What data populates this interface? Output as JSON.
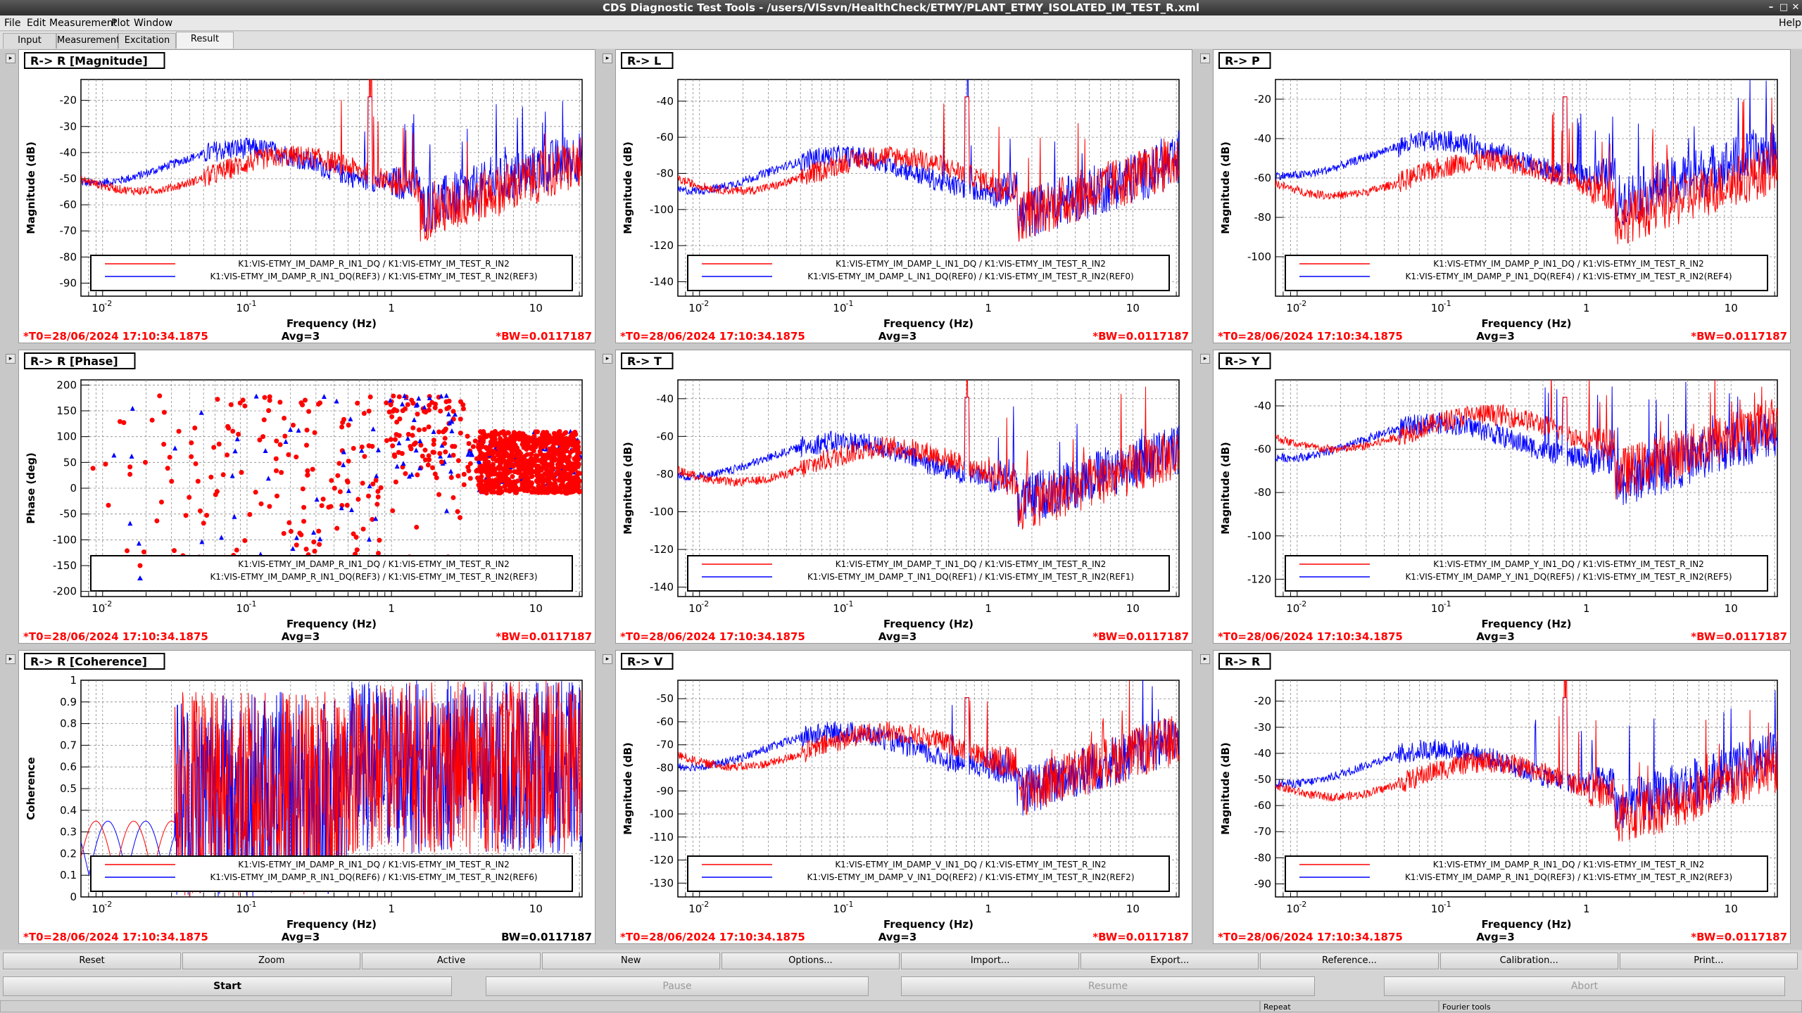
{
  "window": {
    "title": "CDS Diagnostic Test Tools - /users/VISsvn/HealthCheck/ETMY/PLANT_ETMY_ISOLATED_IM_TEST_R.xml"
  },
  "menu": [
    "File",
    "Edit",
    "Measurement",
    "Plot",
    "Window",
    "Help"
  ],
  "tabs": [
    {
      "label": "Input",
      "active": false
    },
    {
      "label": "Measurement",
      "active": false
    },
    {
      "label": "Excitation",
      "active": false
    },
    {
      "label": "Result",
      "active": true
    }
  ],
  "common": {
    "t0": "*T0=28/06/2024 17:10:34.1875",
    "avg": "Avg=3",
    "bw": "*BW=0.0117187",
    "bw_plain": "BW=0.0117187",
    "xlabel": "Frequency (Hz)",
    "xticks": [
      "10",
      "-2",
      "10",
      "-1",
      "1",
      "10"
    ]
  },
  "panels": [
    {
      "title": "R-> R [Magnitude]",
      "ylabel": "Magnitude (dB)",
      "yticks": [
        "-20",
        "-30",
        "-40",
        "-50",
        "-60",
        "-70",
        "-80",
        "-90"
      ],
      "ymin": -95,
      "ymax": -12,
      "legend": [
        "K1:VIS-ETMY_IM_DAMP_R_IN1_DQ / K1:VIS-ETMY_IM_TEST_R_IN2",
        "K1:VIS-ETMY_IM_DAMP_R_IN1_DQ(REF3) / K1:VIS-ETMY_IM_TEST_R_IN2(REF3)"
      ],
      "bw": "*BW=0.0117187",
      "kind": "mag",
      "redBase": -48,
      "blueBase": -45
    },
    {
      "title": "R-> L",
      "ylabel": "Magnitude (dB)",
      "yticks": [
        "-40",
        "-60",
        "-80",
        "-100",
        "-120",
        "-140"
      ],
      "ymin": -148,
      "ymax": -28,
      "legend": [
        "K1:VIS-ETMY_IM_DAMP_L_IN1_DQ / K1:VIS-ETMY_IM_TEST_R_IN2",
        "K1:VIS-ETMY_IM_DAMP_L_IN1_DQ(REF0) / K1:VIS-ETMY_IM_TEST_R_IN2(REF0)"
      ],
      "bw": "*BW=0.0117187",
      "kind": "mag",
      "redBase": -80,
      "blueBase": -80
    },
    {
      "title": "R-> P",
      "ylabel": "Magnitude (dB)",
      "yticks": [
        "-20",
        "-40",
        "-60",
        "-80",
        "-100"
      ],
      "ymin": -120,
      "ymax": -10,
      "legend": [
        "K1:VIS-ETMY_IM_DAMP_P_IN1_DQ / K1:VIS-ETMY_IM_TEST_R_IN2",
        "K1:VIS-ETMY_IM_DAMP_P_IN1_DQ(REF4) / K1:VIS-ETMY_IM_TEST_R_IN2(REF4)"
      ],
      "bw": "*BW=0.0117187",
      "kind": "mag",
      "redBase": -60,
      "blueBase": -50
    },
    {
      "title": "R-> R [Phase]",
      "ylabel": "Phase (deg)",
      "yticks": [
        "200",
        "150",
        "100",
        "50",
        "0",
        "-50",
        "-100",
        "-150",
        "-200"
      ],
      "ymin": -210,
      "ymax": 210,
      "legend": [
        "K1:VIS-ETMY_IM_DAMP_R_IN1_DQ / K1:VIS-ETMY_IM_TEST_R_IN2",
        "K1:VIS-ETMY_IM_DAMP_R_IN1_DQ(REF3) / K1:VIS-ETMY_IM_TEST_R_IN2(REF3)"
      ],
      "bw": "*BW=0.0117187",
      "kind": "phase"
    },
    {
      "title": "R-> T",
      "ylabel": "Magnitude (dB)",
      "yticks": [
        "-40",
        "-60",
        "-80",
        "-100",
        "-120",
        "-140"
      ],
      "ymin": -145,
      "ymax": -30,
      "legend": [
        "K1:VIS-ETMY_IM_DAMP_T_IN1_DQ / K1:VIS-ETMY_IM_TEST_R_IN2",
        "K1:VIS-ETMY_IM_DAMP_T_IN1_DQ(REF1) / K1:VIS-ETMY_IM_TEST_R_IN2(REF1)"
      ],
      "bw": "*BW=0.0117187",
      "kind": "mag",
      "redBase": -75,
      "blueBase": -72
    },
    {
      "title": "R-> Y",
      "ylabel": "Magnitude (dB)",
      "yticks": [
        "-40",
        "-60",
        "-80",
        "-100",
        "-120"
      ],
      "ymin": -128,
      "ymax": -28,
      "legend": [
        "K1:VIS-ETMY_IM_DAMP_Y_IN1_DQ / K1:VIS-ETMY_IM_TEST_R_IN2",
        "K1:VIS-ETMY_IM_DAMP_Y_IN1_DQ(REF5) / K1:VIS-ETMY_IM_TEST_R_IN2(REF5)"
      ],
      "bw": "*BW=0.0117187",
      "kind": "mag",
      "redBase": -52,
      "blueBase": -56
    },
    {
      "title": "R-> R [Coherence]",
      "ylabel": "Coherence",
      "yticks": [
        "1",
        "0.9",
        "0.8",
        "0.7",
        "0.6",
        "0.5",
        "0.4",
        "0.3",
        "0.2",
        "0.1",
        "0"
      ],
      "ymin": 0,
      "ymax": 1,
      "legend": [
        "K1:VIS-ETMY_IM_DAMP_R_IN1_DQ / K1:VIS-ETMY_IM_TEST_R_IN2",
        "K1:VIS-ETMY_IM_DAMP_R_IN1_DQ(REF6) / K1:VIS-ETMY_IM_TEST_R_IN2(REF6)"
      ],
      "bw": "BW=0.0117187",
      "kind": "coh"
    },
    {
      "title": "R-> V",
      "ylabel": "Magnitude (dB)",
      "yticks": [
        "-50",
        "-60",
        "-70",
        "-80",
        "-90",
        "-100",
        "-110",
        "-120",
        "-130"
      ],
      "ymin": -136,
      "ymax": -42,
      "legend": [
        "K1:VIS-ETMY_IM_DAMP_V_IN1_DQ / K1:VIS-ETMY_IM_TEST_R_IN2",
        "K1:VIS-ETMY_IM_DAMP_V_IN1_DQ(REF2) / K1:VIS-ETMY_IM_TEST_R_IN2(REF2)"
      ],
      "bw": "*BW=0.0117187",
      "kind": "mag",
      "redBase": -72,
      "blueBase": -72
    },
    {
      "title": "R-> R",
      "ylabel": "Magnitude (dB)",
      "yticks": [
        "-20",
        "-30",
        "-40",
        "-50",
        "-60",
        "-70",
        "-80",
        "-90"
      ],
      "ymin": -95,
      "ymax": -12,
      "legend": [
        "K1:VIS-ETMY_IM_DAMP_R_IN1_DQ / K1:VIS-ETMY_IM_TEST_R_IN2",
        "K1:VIS-ETMY_IM_DAMP_R_IN1_DQ(REF3) / K1:VIS-ETMY_IM_TEST_R_IN2(REF3)"
      ],
      "bw": "*BW=0.0117187",
      "kind": "mag",
      "redBase": -50,
      "blueBase": -45
    }
  ],
  "buttons_row1": [
    "Reset",
    "Zoom",
    "Active",
    "New",
    "Options...",
    "Import...",
    "Export...",
    "Reference...",
    "Calibration...",
    "Print..."
  ],
  "buttons_row2": [
    {
      "label": "Start",
      "enabled": true
    },
    {
      "label": "Pause",
      "enabled": false
    },
    {
      "label": "Resume",
      "enabled": false
    },
    {
      "label": "Abort",
      "enabled": false
    }
  ],
  "status": {
    "repeat": "Repeat",
    "fourier": "Fourier tools"
  },
  "colors": {
    "red": "#ff0000",
    "blue": "#0000ff",
    "t0": "#ff0000"
  }
}
